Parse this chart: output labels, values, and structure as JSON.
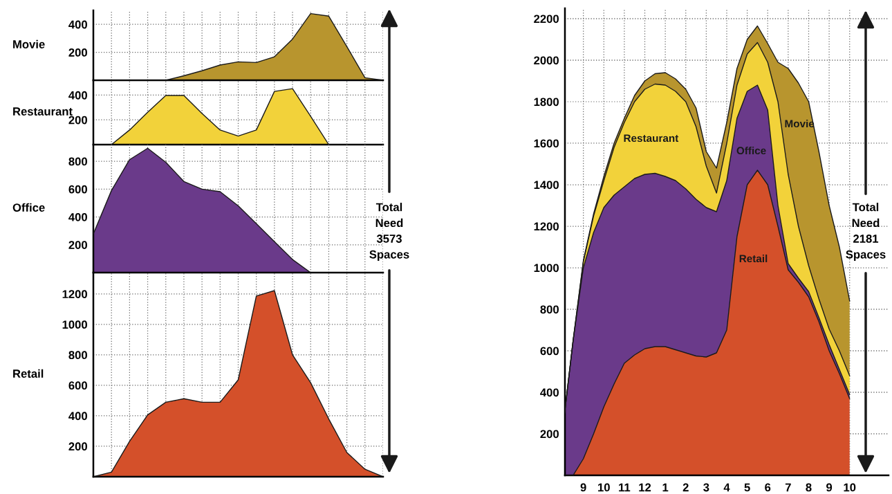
{
  "chart_data": [
    {
      "type": "area",
      "ylabel": "Movie",
      "categories": [
        null,
        null,
        null,
        null,
        null,
        null,
        null,
        null,
        null,
        null,
        null,
        null,
        null,
        null,
        null,
        null,
        null
      ],
      "series": [
        {
          "color": "#b8952e",
          "values": [
            0,
            0,
            0,
            0,
            0,
            32,
            68,
            109,
            132,
            127,
            168,
            295,
            477,
            459,
            241,
            18,
            0
          ]
        }
      ],
      "ylim": [
        0,
        500
      ],
      "yticks": [
        200,
        400
      ],
      "grid": true,
      "tick_labels": "y"
    },
    {
      "type": "area",
      "ylabel": "Restaurant",
      "categories": [
        null,
        null,
        null,
        null,
        null,
        null,
        null,
        null,
        null,
        null,
        null,
        null,
        null,
        null,
        null,
        null,
        null
      ],
      "series": [
        {
          "color": "#f2d23a",
          "values": [
            0,
            0,
            118,
            262,
            397,
            397,
            252,
            118,
            69,
            118,
            430,
            452,
            229,
            0,
            0,
            0,
            0
          ]
        }
      ],
      "ylim": [
        0,
        520
      ],
      "yticks": [
        200,
        400
      ],
      "grid": true,
      "tick_labels": "y"
    },
    {
      "type": "area",
      "ylabel": "Office",
      "categories": [
        null,
        null,
        null,
        null,
        null,
        null,
        null,
        null,
        null,
        null,
        null,
        null,
        null,
        null,
        null,
        null,
        null
      ],
      "series": [
        {
          "color": "#6a3a8a",
          "values": [
            278,
            590,
            812,
            894,
            793,
            655,
            600,
            582,
            480,
            352,
            223,
            94,
            0,
            0,
            0,
            0,
            0
          ]
        }
      ],
      "ylim": [
        0,
        920
      ],
      "yticks": [
        200,
        400,
        600,
        800
      ],
      "grid": true,
      "tick_labels": "y",
      "annotations": [
        "Total\nNeed\n3573\nSpaces"
      ]
    },
    {
      "type": "area",
      "ylabel": "Retail",
      "categories": [
        null,
        null,
        null,
        null,
        null,
        null,
        null,
        null,
        null,
        null,
        null,
        null,
        null,
        null,
        null,
        null,
        null
      ],
      "series": [
        {
          "color": "#d4502a",
          "values": [
            0,
            30,
            232,
            406,
            489,
            512,
            489,
            489,
            636,
            1186,
            1222,
            800,
            617,
            379,
            159,
            49,
            0
          ]
        }
      ],
      "ylim": [
        0,
        1340
      ],
      "yticks": [
        200,
        400,
        600,
        800,
        1000,
        1200
      ],
      "grid": true,
      "tick_labels": "y"
    },
    {
      "type": "area",
      "stacked": true,
      "categories": [
        null,
        null,
        "9",
        null,
        "10",
        null,
        "11",
        null,
        "12",
        null,
        "1",
        null,
        "2",
        null,
        "3",
        null,
        "4",
        null,
        "5",
        null,
        "6",
        null,
        "7",
        null,
        "8",
        null,
        "9",
        null,
        "10"
      ],
      "series": [
        {
          "name": "Retail",
          "color": "#d4502a",
          "values": [
            0,
            0,
            80,
            200,
            330,
            440,
            540,
            580,
            610,
            620,
            620,
            605,
            590,
            575,
            570,
            590,
            700,
            1150,
            1400,
            1470,
            1400,
            1200,
            990,
            930,
            860,
            740,
            600,
            490,
            370
          ]
        },
        {
          "name": "Office",
          "color": "#6a3a8a",
          "values": [
            230,
            650,
            920,
            970,
            960,
            910,
            850,
            850,
            840,
            835,
            820,
            815,
            790,
            755,
            720,
            680,
            720,
            570,
            450,
            410,
            360,
            100,
            30,
            20,
            25,
            20,
            30,
            20,
            20
          ]
        },
        {
          "name": "Restaurant",
          "color": "#f2d23a",
          "values": [
            0,
            0,
            30,
            80,
            130,
            230,
            310,
            370,
            410,
            430,
            440,
            430,
            420,
            350,
            200,
            90,
            180,
            160,
            180,
            205,
            230,
            500,
            430,
            250,
            125,
            90,
            75,
            90,
            90
          ]
        },
        {
          "name": "Movie",
          "color": "#b8952e",
          "values": [
            0,
            0,
            5,
            10,
            20,
            20,
            20,
            30,
            40,
            50,
            60,
            60,
            60,
            90,
            70,
            120,
            100,
            80,
            70,
            80,
            90,
            190,
            510,
            690,
            790,
            710,
            595,
            500,
            360
          ]
        }
      ],
      "ylim": [
        0,
        2250
      ],
      "yticks": [
        200,
        400,
        600,
        800,
        1000,
        1200,
        1400,
        1600,
        1800,
        2000,
        2200
      ],
      "grid": true,
      "annotations": [
        "Total\nNeed\n2181\nSpaces"
      ]
    }
  ]
}
